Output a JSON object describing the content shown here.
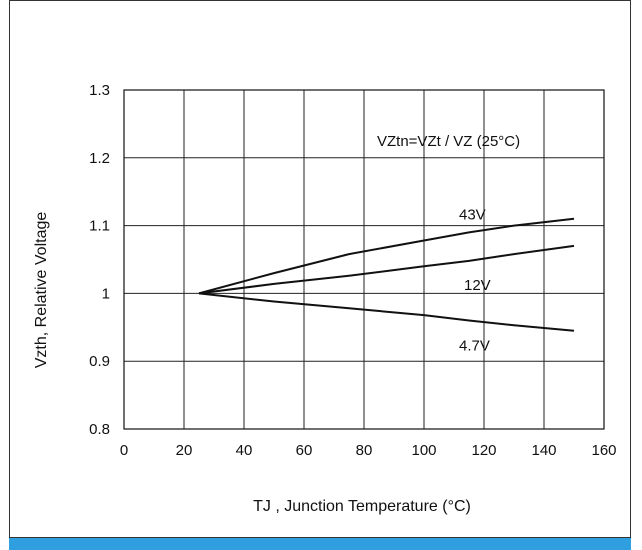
{
  "chart_data": {
    "type": "line",
    "xlabel": "TJ , Junction Temperature (°C)",
    "ylabel": "Vzth, Relative Voltage",
    "xlim": [
      0,
      160
    ],
    "ylim": [
      0.8,
      1.3
    ],
    "x_ticks": [
      "0",
      "20",
      "40",
      "60",
      "80",
      "100",
      "120",
      "140",
      "160"
    ],
    "y_ticks": [
      "0.8",
      "0.9",
      "1",
      "1.1",
      "1.2",
      "1.3"
    ],
    "grid": true,
    "annotation": "VZtn=VZt / VZ (25°C)",
    "series": [
      {
        "name": "43V",
        "x": [
          25,
          50,
          75,
          100,
          115,
          130,
          150
        ],
        "y": [
          1.0,
          1.03,
          1.058,
          1.078,
          1.09,
          1.1,
          1.11
        ]
      },
      {
        "name": "12V",
        "x": [
          25,
          50,
          75,
          100,
          115,
          130,
          150
        ],
        "y": [
          1.0,
          1.014,
          1.026,
          1.04,
          1.048,
          1.058,
          1.07
        ]
      },
      {
        "name": "4.7V",
        "x": [
          25,
          50,
          75,
          100,
          115,
          130,
          150
        ],
        "y": [
          1.0,
          0.988,
          0.978,
          0.968,
          0.96,
          0.953,
          0.945
        ]
      }
    ]
  }
}
